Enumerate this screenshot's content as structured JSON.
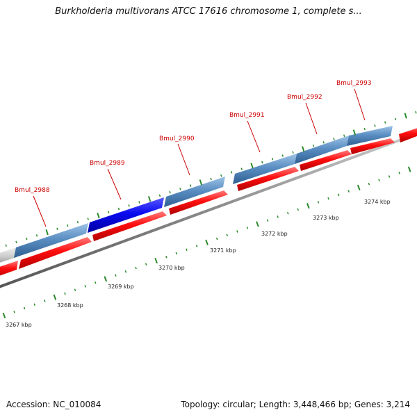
{
  "title": "Burkholderia multivorans ATCC 17616 chromosome 1, complete s...",
  "footer": {
    "accession": "Accession: NC_010084",
    "summary": "Topology: circular; Length: 3,448,466 bp; Genes: 3,214"
  },
  "colors": {
    "background": "#ffffff",
    "gene_label": "#cc0000",
    "cds_forward": "#ff0000",
    "gene_steelblue": "#4f84b8",
    "gene_highlight": "#0000ee",
    "gene_grey": "#c8c8c8",
    "backbone": "#808080",
    "tick": "#2a8a2a"
  },
  "scale_labels": [
    "3267 kbp",
    "3268 kbp",
    "3269 kbp",
    "3270 kbp",
    "3271 kbp",
    "3272 kbp",
    "3273 kbp",
    "3274 kbp"
  ],
  "gene_labels": [
    "Bmul_2988",
    "Bmul_2989",
    "Bmul_2990",
    "Bmul_2991",
    "Bmul_2992",
    "Bmul_2993"
  ]
}
